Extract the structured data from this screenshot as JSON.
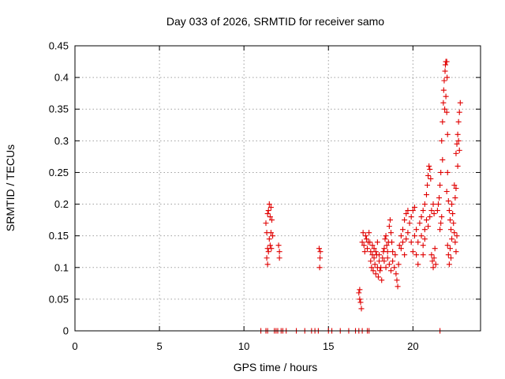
{
  "chart_data": {
    "type": "scatter",
    "title": "Day 033 of 2026, SRMTID for receiver samo",
    "xlabel": "GPS time / hours",
    "ylabel": "SRMTID / TECUs",
    "xlim": [
      0,
      24
    ],
    "ylim": [
      0,
      0.45
    ],
    "xticks": [
      0,
      5,
      10,
      15,
      20
    ],
    "yticks": [
      0,
      0.05,
      0.1,
      0.15,
      0.2,
      0.25,
      0.3,
      0.35,
      0.4,
      0.45
    ],
    "xtick_labels": [
      "0",
      "5",
      "10",
      "15",
      "20"
    ],
    "ytick_labels": [
      "0",
      "0.05",
      "0.1",
      "0.15",
      "0.2",
      "0.25",
      "0.3",
      "0.35",
      "0.4",
      "0.45"
    ],
    "grid": true,
    "marker": "+",
    "color": "#e00000",
    "series": [
      {
        "name": "SRMTID",
        "points": [
          [
            11.0,
            0
          ],
          [
            11.3,
            0
          ],
          [
            11.4,
            0
          ],
          [
            11.8,
            0
          ],
          [
            11.9,
            0
          ],
          [
            12.0,
            0
          ],
          [
            12.2,
            0
          ],
          [
            12.3,
            0
          ],
          [
            12.5,
            0
          ],
          [
            13.1,
            0
          ],
          [
            13.6,
            0
          ],
          [
            14.0,
            0
          ],
          [
            14.2,
            0
          ],
          [
            14.4,
            0
          ],
          [
            15.0,
            0
          ],
          [
            15.2,
            0
          ],
          [
            15.7,
            0
          ],
          [
            16.2,
            0
          ],
          [
            16.6,
            0
          ],
          [
            16.8,
            0
          ],
          [
            17.0,
            0
          ],
          [
            17.3,
            0
          ],
          [
            17.4,
            0
          ],
          [
            21.6,
            0
          ],
          [
            11.3,
            0.17
          ],
          [
            11.35,
            0.155
          ],
          [
            11.4,
            0.185
          ],
          [
            11.45,
            0.19
          ],
          [
            11.5,
            0.2
          ],
          [
            11.55,
            0.18
          ],
          [
            11.6,
            0.195
          ],
          [
            11.65,
            0.175
          ],
          [
            11.4,
            0.13
          ],
          [
            11.45,
            0.125
          ],
          [
            11.5,
            0.145
          ],
          [
            11.55,
            0.135
          ],
          [
            11.35,
            0.115
          ],
          [
            11.4,
            0.105
          ],
          [
            11.6,
            0.155
          ],
          [
            11.7,
            0.15
          ],
          [
            11.62,
            0.13
          ],
          [
            12.05,
            0.135
          ],
          [
            12.1,
            0.125
          ],
          [
            12.1,
            0.115
          ],
          [
            14.45,
            0.13
          ],
          [
            14.5,
            0.115
          ],
          [
            14.48,
            0.1
          ],
          [
            14.52,
            0.125
          ],
          [
            16.8,
            0.06
          ],
          [
            16.85,
            0.05
          ],
          [
            16.9,
            0.045
          ],
          [
            16.95,
            0.035
          ],
          [
            16.85,
            0.065
          ],
          [
            17.0,
            0.14
          ],
          [
            17.05,
            0.155
          ],
          [
            17.1,
            0.135
          ],
          [
            17.15,
            0.125
          ],
          [
            17.2,
            0.15
          ],
          [
            17.25,
            0.145
          ],
          [
            17.3,
            0.13
          ],
          [
            17.35,
            0.14
          ],
          [
            17.4,
            0.155
          ],
          [
            17.45,
            0.14
          ],
          [
            17.5,
            0.125
          ],
          [
            17.5,
            0.11
          ],
          [
            17.55,
            0.1
          ],
          [
            17.6,
            0.12
          ],
          [
            17.65,
            0.095
          ],
          [
            17.7,
            0.115
          ],
          [
            17.75,
            0.105
          ],
          [
            17.8,
            0.09
          ],
          [
            17.85,
            0.12
          ],
          [
            17.9,
            0.1
          ],
          [
            17.95,
            0.085
          ],
          [
            18.0,
            0.11
          ],
          [
            18.05,
            0.095
          ],
          [
            18.1,
            0.1
          ],
          [
            18.15,
            0.08
          ],
          [
            18.2,
            0.115
          ],
          [
            18.25,
            0.125
          ],
          [
            17.6,
            0.135
          ],
          [
            17.7,
            0.13
          ],
          [
            17.8,
            0.125
          ],
          [
            17.9,
            0.14
          ],
          [
            18.0,
            0.12
          ],
          [
            18.3,
            0.13
          ],
          [
            18.35,
            0.145
          ],
          [
            18.4,
            0.15
          ],
          [
            18.45,
            0.135
          ],
          [
            18.5,
            0.125
          ],
          [
            18.55,
            0.14
          ],
          [
            18.6,
            0.165
          ],
          [
            18.65,
            0.175
          ],
          [
            18.7,
            0.155
          ],
          [
            18.75,
            0.14
          ],
          [
            18.8,
            0.125
          ],
          [
            18.3,
            0.11
          ],
          [
            18.4,
            0.1
          ],
          [
            18.5,
            0.115
          ],
          [
            18.6,
            0.105
          ],
          [
            18.7,
            0.095
          ],
          [
            18.8,
            0.11
          ],
          [
            18.9,
            0.1
          ],
          [
            19.0,
            0.09
          ],
          [
            19.05,
            0.08
          ],
          [
            19.1,
            0.07
          ],
          [
            19.15,
            0.105
          ],
          [
            18.95,
            0.12
          ],
          [
            19.2,
            0.135
          ],
          [
            19.3,
            0.15
          ],
          [
            19.4,
            0.16
          ],
          [
            19.5,
            0.175
          ],
          [
            19.6,
            0.185
          ],
          [
            19.7,
            0.19
          ],
          [
            19.3,
            0.13
          ],
          [
            19.4,
            0.14
          ],
          [
            19.5,
            0.12
          ],
          [
            19.6,
            0.145
          ],
          [
            19.7,
            0.155
          ],
          [
            19.8,
            0.17
          ],
          [
            19.9,
            0.18
          ],
          [
            20.0,
            0.19
          ],
          [
            20.1,
            0.195
          ],
          [
            19.9,
            0.14
          ],
          [
            20.0,
            0.125
          ],
          [
            20.1,
            0.15
          ],
          [
            20.2,
            0.16
          ],
          [
            20.2,
            0.12
          ],
          [
            20.3,
            0.105
          ],
          [
            20.3,
            0.14
          ],
          [
            20.4,
            0.17
          ],
          [
            20.5,
            0.18
          ],
          [
            20.6,
            0.19
          ],
          [
            20.7,
            0.2
          ],
          [
            20.8,
            0.215
          ],
          [
            20.85,
            0.23
          ],
          [
            20.9,
            0.245
          ],
          [
            20.95,
            0.26
          ],
          [
            21.0,
            0.255
          ],
          [
            21.05,
            0.24
          ],
          [
            20.5,
            0.15
          ],
          [
            20.6,
            0.135
          ],
          [
            20.7,
            0.16
          ],
          [
            20.8,
            0.175
          ],
          [
            20.9,
            0.165
          ],
          [
            21.0,
            0.18
          ],
          [
            21.1,
            0.19
          ],
          [
            21.2,
            0.2
          ],
          [
            21.25,
            0.185
          ],
          [
            20.6,
            0.12
          ],
          [
            20.7,
            0.145
          ],
          [
            21.1,
            0.12
          ],
          [
            21.15,
            0.11
          ],
          [
            21.2,
            0.1
          ],
          [
            21.25,
            0.115
          ],
          [
            21.3,
            0.13
          ],
          [
            21.35,
            0.105
          ],
          [
            21.45,
            0.19
          ],
          [
            21.5,
            0.2
          ],
          [
            21.55,
            0.21
          ],
          [
            21.6,
            0.23
          ],
          [
            21.65,
            0.25
          ],
          [
            21.6,
            0.16
          ],
          [
            21.65,
            0.17
          ],
          [
            21.7,
            0.18
          ],
          [
            21.75,
            0.27
          ],
          [
            21.7,
            0.3
          ],
          [
            21.75,
            0.33
          ],
          [
            21.8,
            0.36
          ],
          [
            21.82,
            0.38
          ],
          [
            21.85,
            0.395
          ],
          [
            21.9,
            0.41
          ],
          [
            21.92,
            0.42
          ],
          [
            21.95,
            0.425
          ],
          [
            22.0,
            0.425
          ],
          [
            22.02,
            0.4
          ],
          [
            21.88,
            0.35
          ],
          [
            21.95,
            0.37
          ],
          [
            22.0,
            0.345
          ],
          [
            22.05,
            0.31
          ],
          [
            22.0,
            0.22
          ],
          [
            22.05,
            0.25
          ],
          [
            22.1,
            0.205
          ],
          [
            22.15,
            0.19
          ],
          [
            22.2,
            0.175
          ],
          [
            22.25,
            0.16
          ],
          [
            22.3,
            0.145
          ],
          [
            22.05,
            0.135
          ],
          [
            22.1,
            0.12
          ],
          [
            22.15,
            0.105
          ],
          [
            22.2,
            0.13
          ],
          [
            22.25,
            0.115
          ],
          [
            22.3,
            0.2
          ],
          [
            22.35,
            0.185
          ],
          [
            22.4,
            0.17
          ],
          [
            22.45,
            0.155
          ],
          [
            22.5,
            0.14
          ],
          [
            22.55,
            0.125
          ],
          [
            22.6,
            0.15
          ],
          [
            22.45,
            0.23
          ],
          [
            22.5,
            0.21
          ],
          [
            22.55,
            0.225
          ],
          [
            22.6,
            0.295
          ],
          [
            22.65,
            0.31
          ],
          [
            22.7,
            0.33
          ],
          [
            22.75,
            0.345
          ],
          [
            22.8,
            0.36
          ],
          [
            22.7,
            0.3
          ],
          [
            22.75,
            0.285
          ],
          [
            22.65,
            0.26
          ],
          [
            22.55,
            0.28
          ]
        ]
      }
    ]
  }
}
